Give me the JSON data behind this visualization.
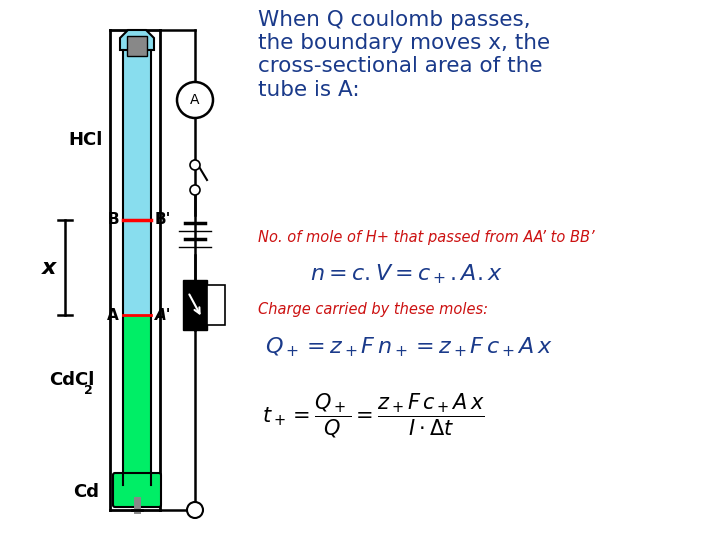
{
  "bg_color": "#ffffff",
  "title_text": "When Q coulomb passes,\nthe boundary moves x, the\ncross-sectional area of the\ntube is A:",
  "title_color": "#1a3a8a",
  "title_fontsize": 15.5,
  "subtitle1_text": "No. of mole of H+ that passed from AA’ to BB’",
  "subtitle1_color": "#cc1111",
  "eq1_color": "#1a3a8a",
  "subtitle2_text": "Charge carried by these moles:",
  "subtitle2_color": "#cc1111",
  "eq2_color": "#1a3a8a",
  "tube_color_top": "#88ddee",
  "tube_color_bottom": "#00ee66",
  "tube_top_cap_color": "#88ddee",
  "gray_electrode": "#888888",
  "green_bottom": "#00ee66"
}
